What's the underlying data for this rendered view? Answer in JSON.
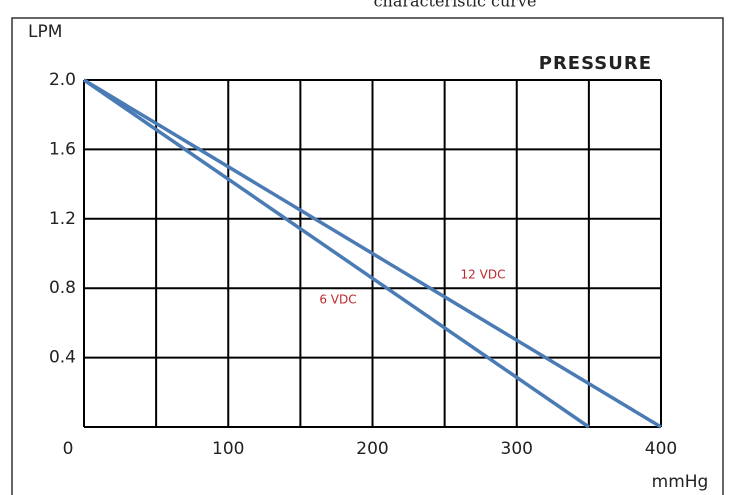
{
  "chart_data": {
    "type": "line",
    "title": "characteristic curve",
    "ylabel": "LPM",
    "xlabel": "mmHg",
    "annotation": "PRESSURE",
    "x": [
      0,
      350,
      400
    ],
    "series": [
      {
        "name": "12 VDC",
        "color": "#4a7bb5",
        "label_color": "#c0282d",
        "x": [
          0,
          400
        ],
        "values": [
          2.0,
          0
        ]
      },
      {
        "name": "6 VDC",
        "color": "#4a7bb5",
        "label_color": "#c0282d",
        "x": [
          0,
          350
        ],
        "values": [
          2.0,
          0
        ]
      }
    ],
    "xlim": [
      0,
      400
    ],
    "ylim": [
      0,
      2
    ],
    "xticks": [
      0,
      100,
      200,
      300,
      400
    ],
    "xminor": [
      50,
      150,
      250,
      350
    ],
    "yticks": [
      {
        "value": 0.4,
        "label": "0.4"
      },
      {
        "value": 0.8,
        "label": "0.8"
      },
      {
        "value": 1.2,
        "label": "1.2"
      },
      {
        "value": 1.6,
        "label": "1.6"
      },
      {
        "value": 2,
        "label": "2.0"
      }
    ],
    "grid": true
  }
}
